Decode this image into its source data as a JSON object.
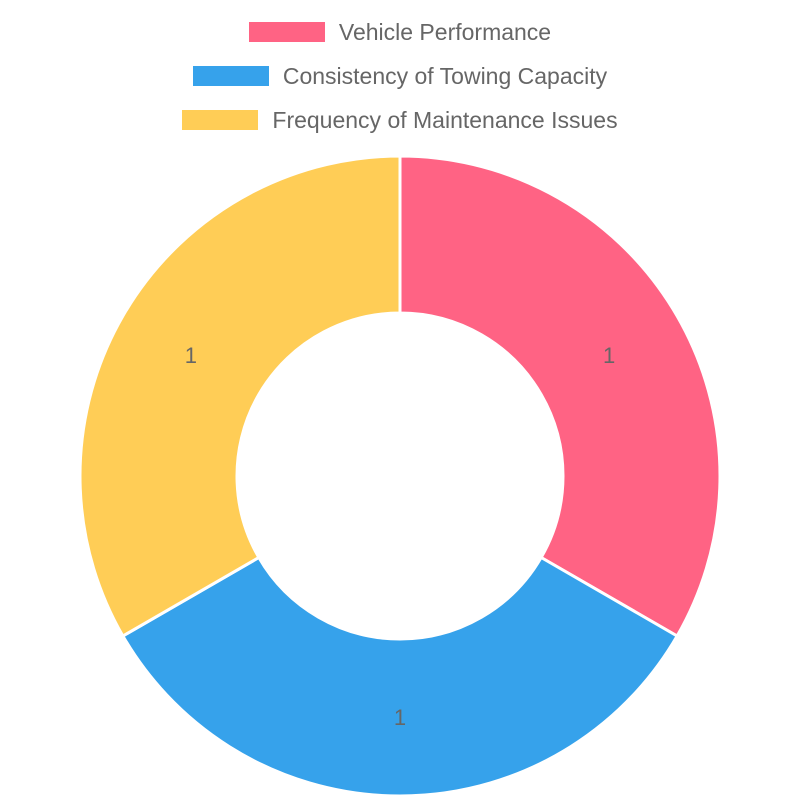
{
  "chart_data": {
    "type": "doughnut",
    "categories": [
      "Vehicle Performance",
      "Consistency of Towing Capacity",
      "Frequency of Maintenance Issues"
    ],
    "values": [
      1,
      1,
      1
    ],
    "colors": [
      "#ff6384",
      "#36a2eb",
      "#ffcd56"
    ],
    "data_labels": [
      "1",
      "1",
      "1"
    ],
    "legend_position": "top"
  }
}
